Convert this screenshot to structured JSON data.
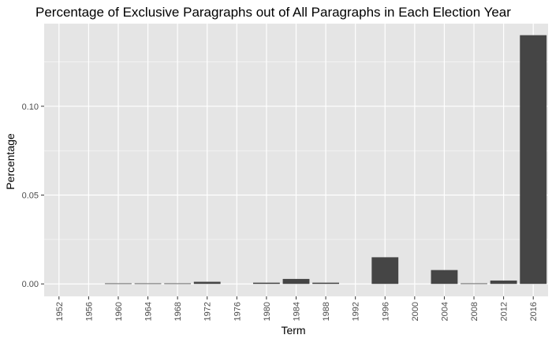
{
  "chart_data": {
    "type": "bar",
    "title": "Percentage of Exclusive Paragraphs out of All Paragraphs in Each Election Year",
    "xlabel": "Term",
    "ylabel": "Percentage",
    "categories": [
      "1952",
      "1956",
      "1960",
      "1964",
      "1968",
      "1972",
      "1976",
      "1980",
      "1984",
      "1988",
      "1992",
      "1996",
      "2000",
      "2004",
      "2008",
      "2012",
      "2016"
    ],
    "values": [
      0,
      0,
      0.0003,
      0.0003,
      0.0003,
      0.0012,
      0,
      0.0007,
      0.0028,
      0.0007,
      0,
      0.015,
      0,
      0.0078,
      0.0003,
      0.0019,
      0.14
    ],
    "ylim": [
      -0.007,
      0.1465
    ],
    "yticks": [
      0,
      0.05,
      0.1
    ],
    "ytick_labels": [
      "0.00",
      "0.05",
      "0.10"
    ],
    "grid": true,
    "legend": "none",
    "colors": {
      "panel": "#e5e5e5",
      "grid_major": "#ffffff",
      "bar": "#454545",
      "axis_text": "#4d4d4d",
      "title_text": "#000000"
    }
  }
}
